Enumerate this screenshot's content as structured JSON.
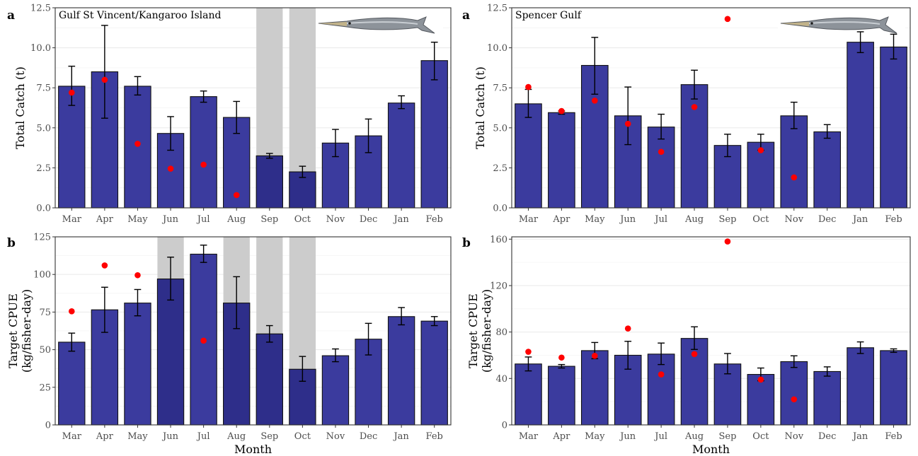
{
  "chart_data": [
    {
      "type": "bar",
      "panel_letter": "a",
      "title": "Gulf St Vincent/Kangaroo Island",
      "xlabel": "",
      "ylabel": "Total Catch (t)",
      "ylim": [
        0,
        12.5
      ],
      "yticks": [
        "0.0",
        "2.5",
        "5.0",
        "7.5",
        "10.0",
        "12.5"
      ],
      "categories": [
        "Mar",
        "Apr",
        "May",
        "Jun",
        "Jul",
        "Aug",
        "Sep",
        "Oct",
        "Nov",
        "Dec",
        "Jan",
        "Feb"
      ],
      "values": [
        7.6,
        8.5,
        7.6,
        4.65,
        6.95,
        5.65,
        3.25,
        2.25,
        4.05,
        4.5,
        6.55,
        9.2
      ],
      "error_low": [
        6.4,
        5.6,
        7.05,
        3.6,
        6.6,
        4.65,
        3.1,
        1.9,
        3.2,
        3.45,
        6.2,
        8.0
      ],
      "error_high": [
        8.85,
        11.4,
        8.2,
        5.7,
        7.3,
        6.65,
        3.4,
        2.6,
        4.9,
        5.55,
        7.0,
        10.35
      ],
      "points": [
        7.2,
        8.0,
        4.0,
        2.45,
        2.7,
        0.8,
        null,
        null,
        null,
        null,
        null,
        null
      ],
      "shaded_months": [
        "Sep",
        "Oct"
      ],
      "has_fish_image": true,
      "grid": true
    },
    {
      "type": "bar",
      "panel_letter": "a",
      "title": "Spencer Gulf",
      "xlabel": "",
      "ylabel": "Total Catch (t)",
      "ylim": [
        0,
        12.5
      ],
      "yticks": [
        "0.0",
        "2.5",
        "5.0",
        "7.5",
        "10.0",
        "12.5"
      ],
      "categories": [
        "Mar",
        "Apr",
        "May",
        "Jun",
        "Jul",
        "Aug",
        "Sep",
        "Oct",
        "Nov",
        "Dec",
        "Jan",
        "Feb"
      ],
      "values": [
        6.5,
        5.95,
        8.9,
        5.75,
        5.05,
        7.7,
        3.9,
        4.1,
        5.75,
        4.75,
        10.35,
        10.05
      ],
      "error_low": [
        5.65,
        5.85,
        7.1,
        3.95,
        4.3,
        6.8,
        3.2,
        3.6,
        4.95,
        4.35,
        9.7,
        9.3
      ],
      "error_high": [
        7.4,
        6.05,
        10.65,
        7.55,
        5.85,
        8.6,
        4.6,
        4.6,
        6.6,
        5.2,
        11.0,
        10.85
      ],
      "points": [
        7.55,
        6.05,
        6.7,
        5.25,
        3.5,
        6.3,
        11.8,
        3.6,
        1.9,
        null,
        null,
        null
      ],
      "shaded_months": [],
      "has_fish_image": true,
      "grid": true
    },
    {
      "type": "bar",
      "panel_letter": "b",
      "title": "",
      "xlabel": "Month",
      "ylabel": "Target CPUE (kg/fisher-day)",
      "ylabel_lines": [
        "Target CPUE",
        "(kg/fisher-day)"
      ],
      "ylim": [
        0,
        125
      ],
      "yticks": [
        "0",
        "25",
        "50",
        "75",
        "100",
        "125"
      ],
      "categories": [
        "Mar",
        "Apr",
        "May",
        "Jun",
        "Jul",
        "Aug",
        "Sep",
        "Oct",
        "Nov",
        "Dec",
        "Jan",
        "Feb"
      ],
      "values": [
        55,
        76.5,
        81,
        97,
        113.5,
        81,
        60.5,
        37,
        46,
        57,
        72,
        69
      ],
      "error_low": [
        49,
        61.5,
        72.5,
        83,
        108,
        64,
        55,
        29,
        42,
        46.5,
        66.5,
        66
      ],
      "error_high": [
        61,
        91.5,
        90,
        111.5,
        119.5,
        98.5,
        66,
        45.5,
        50.5,
        67.5,
        78,
        72
      ],
      "points": [
        75.5,
        106,
        99.5,
        null,
        56,
        null,
        null,
        null,
        null,
        null,
        null,
        null
      ],
      "shaded_months": [
        "Jun",
        "Aug",
        "Sep",
        "Oct"
      ],
      "has_fish_image": false,
      "grid": true
    },
    {
      "type": "bar",
      "panel_letter": "b",
      "title": "",
      "xlabel": "Month",
      "ylabel": "Target CPUE (kg/fisher-day)",
      "ylabel_lines": [
        "Target CPUE",
        "(kg/fisher-day)"
      ],
      "ylim": [
        0,
        162
      ],
      "yticks": [
        "0",
        "40",
        "80",
        "120",
        "160"
      ],
      "categories": [
        "Mar",
        "Apr",
        "May",
        "Jun",
        "Jul",
        "Aug",
        "Sep",
        "Oct",
        "Nov",
        "Dec",
        "Jan",
        "Feb"
      ],
      "values": [
        52.5,
        50.5,
        64,
        60,
        61,
        74.5,
        52.5,
        43.5,
        54.5,
        46,
        66.5,
        64
      ],
      "error_low": [
        46.5,
        49,
        57,
        48,
        52,
        65,
        44,
        38,
        49.5,
        42,
        61.5,
        62.5
      ],
      "error_high": [
        58.5,
        52,
        71,
        72,
        70.5,
        84.5,
        61.5,
        49,
        59.5,
        50,
        71.5,
        65.5
      ],
      "points": [
        63,
        58,
        59.5,
        83,
        43.5,
        61,
        158,
        39,
        22,
        null,
        null,
        null
      ],
      "shaded_months": [],
      "has_fish_image": false,
      "grid": true
    }
  ],
  "colors": {
    "bar": "#3b3b9e",
    "bar_dark": "#2e2e8a",
    "point": "#ff0000",
    "shade": "#cccccc",
    "grid": "#ebebeb",
    "axis": "#333333"
  }
}
